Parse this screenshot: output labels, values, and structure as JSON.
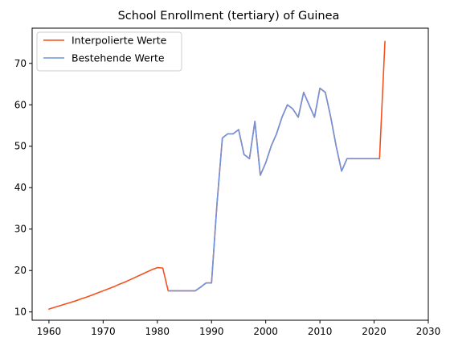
{
  "chart_data": {
    "type": "line",
    "title": "School Enrollment (tertiary) of Guinea",
    "xlabel": "",
    "ylabel": "",
    "xlim": [
      1956.9,
      2030
    ],
    "ylim": [
      8,
      78.5
    ],
    "xticks": [
      1960,
      1970,
      1980,
      1990,
      2000,
      2010,
      2020,
      2030
    ],
    "yticks": [
      10,
      20,
      30,
      40,
      50,
      60,
      70
    ],
    "grid": false,
    "legend_position": "top-left",
    "series": [
      {
        "name": "Interpolierte Werte",
        "color": "#f4511e",
        "x": [
          1960,
          1961,
          1962,
          1963,
          1964,
          1965,
          1966,
          1967,
          1968,
          1969,
          1970,
          1971,
          1972,
          1973,
          1974,
          1975,
          1976,
          1977,
          1978,
          1979,
          1980,
          1981,
          1982,
          1983,
          1984,
          1985,
          1986,
          1987,
          1988,
          1989,
          1990,
          1991,
          1992,
          1993,
          1994,
          1995,
          1996,
          1997,
          1998,
          1999,
          2000,
          2001,
          2002,
          2003,
          2004,
          2005,
          2006,
          2007,
          2008,
          2009,
          2010,
          2011,
          2012,
          2013,
          2014,
          2015,
          2016,
          2017,
          2018,
          2019,
          2020,
          2021,
          2022
        ],
        "y": [
          10.7,
          11.1,
          11.5,
          11.9,
          12.3,
          12.7,
          13.2,
          13.6,
          14.1,
          14.6,
          15.1,
          15.6,
          16.1,
          16.7,
          17.2,
          17.8,
          18.4,
          19.0,
          19.6,
          20.2,
          20.7,
          20.6,
          15.1,
          15.1,
          15.1,
          15.1,
          15.1,
          15.1,
          16.0,
          17.0,
          17.0,
          36.0,
          52.0,
          53.0,
          53.0,
          54.0,
          48.0,
          47.0,
          56.0,
          43.0,
          46.0,
          50.0,
          53.0,
          57.0,
          60.0,
          59.0,
          57.0,
          63.0,
          60.0,
          57.0,
          64.0,
          63.0,
          57.0,
          50.0,
          44.0,
          47.0,
          47.0,
          47.0,
          47.0,
          47.0,
          47.0,
          47.0,
          75.3
        ]
      },
      {
        "name": "Bestehende Werte",
        "color": "#6f94dc",
        "x": [
          1982,
          1983,
          1984,
          1985,
          1986,
          1987,
          1988,
          1989,
          1990,
          1991,
          1992,
          1993,
          1994,
          1995,
          1996,
          1997,
          1998,
          1999,
          2000,
          2001,
          2002,
          2003,
          2004,
          2005,
          2006,
          2007,
          2008,
          2009,
          2010,
          2011,
          2012,
          2013,
          2014,
          2015,
          2016,
          2017,
          2018,
          2019,
          2020,
          2021
        ],
        "y": [
          15.1,
          15.1,
          15.1,
          15.1,
          15.1,
          15.1,
          16.0,
          17.0,
          17.0,
          36.0,
          52.0,
          53.0,
          53.0,
          54.0,
          48.0,
          47.0,
          56.0,
          43.0,
          46.0,
          50.0,
          53.0,
          57.0,
          60.0,
          59.0,
          57.0,
          63.0,
          60.0,
          57.0,
          64.0,
          63.0,
          57.0,
          50.0,
          44.0,
          47.0,
          47.0,
          47.0,
          47.0,
          47.0,
          47.0,
          47.0
        ]
      }
    ]
  }
}
